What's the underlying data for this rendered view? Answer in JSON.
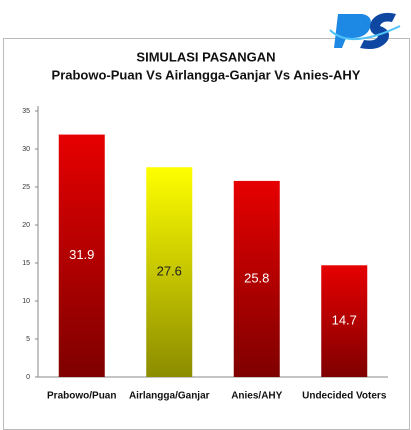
{
  "chart_data": {
    "type": "bar",
    "title": "SIMULASI PASANGAN",
    "subtitle": "Prabowo-Puan Vs Airlangga-Ganjar Vs Anies-AHY",
    "categories": [
      "Prabowo/Puan",
      "Airlangga/Ganjar",
      "Anies/AHY",
      "Undecided Voters"
    ],
    "values": [
      31.9,
      27.6,
      25.8,
      14.7
    ],
    "colors": [
      "#e60000",
      "#ffff00",
      "#e60000",
      "#e60000"
    ],
    "ylim": [
      0,
      35
    ],
    "yticks": [
      0,
      5,
      10,
      15,
      20,
      25,
      30,
      35
    ],
    "grid": false
  }
}
